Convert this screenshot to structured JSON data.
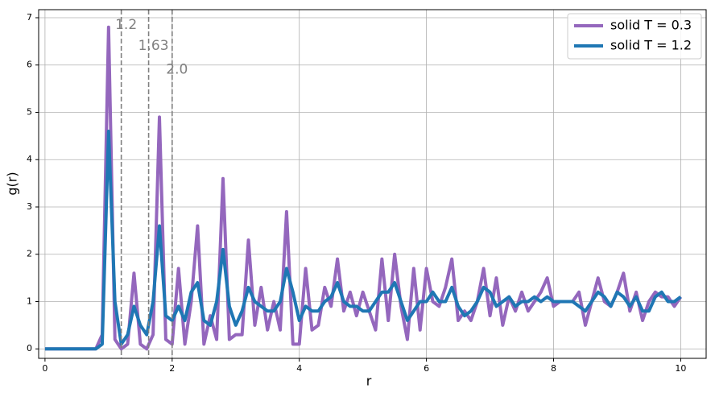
{
  "chart_data": {
    "type": "line",
    "xlabel": "r",
    "ylabel": "g(r)",
    "x": [
      0,
      0.1,
      0.2,
      0.3,
      0.4,
      0.5,
      0.6,
      0.7,
      0.8,
      0.9,
      1.0,
      1.1,
      1.2,
      1.3,
      1.4,
      1.5,
      1.6,
      1.7,
      1.8,
      1.9,
      2.0,
      2.1,
      2.2,
      2.3,
      2.4,
      2.5,
      2.6,
      2.7,
      2.8,
      2.9,
      3.0,
      3.1,
      3.2,
      3.3,
      3.4,
      3.5,
      3.6,
      3.7,
      3.8,
      3.9,
      4.0,
      4.1,
      4.2,
      4.3,
      4.4,
      4.5,
      4.6,
      4.7,
      4.8,
      4.9,
      5.0,
      5.1,
      5.2,
      5.3,
      5.4,
      5.5,
      5.6,
      5.7,
      5.8,
      5.9,
      6.0,
      6.1,
      6.2,
      6.3,
      6.4,
      6.5,
      6.6,
      6.7,
      6.8,
      6.9,
      7.0,
      7.1,
      7.2,
      7.3,
      7.4,
      7.5,
      7.6,
      7.7,
      7.8,
      7.9,
      8.0,
      8.1,
      8.2,
      8.3,
      8.4,
      8.5,
      8.6,
      8.7,
      8.8,
      8.9,
      9.0,
      9.1,
      9.2,
      9.3,
      9.4,
      9.5,
      9.6,
      9.7,
      9.8,
      9.9,
      10.0
    ],
    "series": [
      {
        "name": "solid T = 0.3",
        "color": "#9467bd",
        "values": [
          0,
          0,
          0,
          0,
          0,
          0,
          0,
          0,
          0,
          0.3,
          6.8,
          0.2,
          0.0,
          0.1,
          1.6,
          0.1,
          0.0,
          0.3,
          4.9,
          0.2,
          0.1,
          1.7,
          0.1,
          1.0,
          2.6,
          0.1,
          0.7,
          0.2,
          3.6,
          0.2,
          0.3,
          0.3,
          2.3,
          0.5,
          1.3,
          0.4,
          1.0,
          0.4,
          2.9,
          0.1,
          0.1,
          1.7,
          0.4,
          0.5,
          1.3,
          0.9,
          1.9,
          0.8,
          1.2,
          0.7,
          1.2,
          0.8,
          0.4,
          1.9,
          0.6,
          2.0,
          0.9,
          0.2,
          1.7,
          0.4,
          1.7,
          1.0,
          0.9,
          1.3,
          1.9,
          0.6,
          0.8,
          0.6,
          1.0,
          1.7,
          0.7,
          1.5,
          0.5,
          1.1,
          0.8,
          1.2,
          0.8,
          1.0,
          1.2,
          1.5,
          0.9,
          1.0,
          1.0,
          1.0,
          1.2,
          0.5,
          1.0,
          1.5,
          1.0,
          0.9,
          1.2,
          1.6,
          0.8,
          1.2,
          0.6,
          1.0,
          1.2,
          1.1,
          1.1,
          0.9,
          1.1
        ]
      },
      {
        "name": "solid T = 1.2",
        "color": "#1f77b4",
        "values": [
          0,
          0,
          0,
          0,
          0,
          0,
          0,
          0,
          0,
          0.1,
          4.6,
          1.0,
          0.1,
          0.3,
          0.9,
          0.5,
          0.3,
          1.0,
          2.6,
          0.7,
          0.6,
          0.9,
          0.6,
          1.2,
          1.4,
          0.6,
          0.5,
          1.0,
          2.1,
          0.9,
          0.5,
          0.8,
          1.3,
          1.0,
          0.9,
          0.8,
          0.8,
          1.0,
          1.7,
          1.2,
          0.6,
          0.9,
          0.8,
          0.8,
          1.0,
          1.1,
          1.4,
          1.0,
          0.9,
          0.9,
          0.8,
          0.8,
          1.0,
          1.2,
          1.2,
          1.4,
          1.0,
          0.6,
          0.8,
          1.0,
          1.0,
          1.2,
          1.0,
          1.0,
          1.3,
          0.9,
          0.7,
          0.8,
          1.0,
          1.3,
          1.2,
          0.9,
          1.0,
          1.1,
          0.9,
          1.0,
          1.0,
          1.1,
          1.0,
          1.1,
          1.0,
          1.0,
          1.0,
          1.0,
          0.9,
          0.8,
          1.0,
          1.2,
          1.1,
          0.9,
          1.2,
          1.1,
          0.9,
          1.1,
          0.8,
          0.8,
          1.1,
          1.2,
          1.0,
          1.0,
          1.1
        ]
      }
    ],
    "vlines": [
      {
        "x": 1.2,
        "label": "1.2"
      },
      {
        "x": 1.63,
        "label": "1.63"
      },
      {
        "x": 2.0,
        "label": "2.0"
      }
    ],
    "xlim": [
      -0.1,
      10.4
    ],
    "ylim": [
      -0.2,
      7.17
    ],
    "xticks": [
      0,
      2,
      4,
      6,
      8,
      10
    ],
    "yticks": [
      0,
      1,
      2,
      3,
      4,
      5,
      6,
      7
    ],
    "grid": true,
    "legend": "upper right"
  }
}
